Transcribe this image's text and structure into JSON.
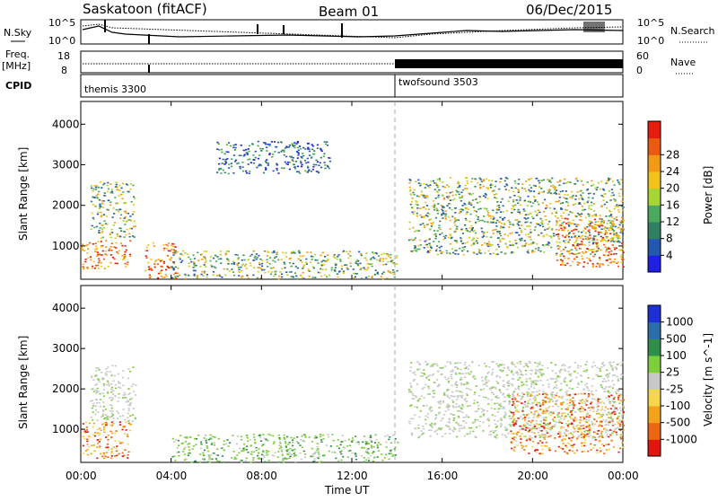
{
  "header": {
    "station": "Saskatoon (fitACF)",
    "beam": "Beam 01",
    "date": "06/Dec/2015"
  },
  "top_panels": {
    "nsky_label": "N.Sky",
    "nsky_ticks": [
      "10^5",
      "10^0"
    ],
    "nsearch_label": "N.Search",
    "nsearch_ticks": [
      "10^5",
      "10^0"
    ],
    "freq_label": "Freq.",
    "freq_unit": "[MHz]",
    "freq_ticks": [
      "18",
      "8"
    ],
    "nave_label": "Nave",
    "nave_ticks": [
      "60",
      "0"
    ],
    "cpid_label": "CPID",
    "cpid_modes": [
      {
        "name": "themis 3300",
        "start_hour": 0,
        "end_hour": 14
      },
      {
        "name": "twofsound 3503",
        "start_hour": 14,
        "end_hour": 24
      }
    ]
  },
  "chart_data": [
    {
      "type": "heatmap",
      "title": "",
      "xlabel": "",
      "ylabel": "Slant Range [km]",
      "xlim": [
        0,
        24
      ],
      "ylim": [
        180,
        4560
      ],
      "yticks": [
        "1000",
        "2000",
        "3000",
        "4000"
      ],
      "colorbar": {
        "label": "Power [dB]",
        "ticks": [
          "4",
          "8",
          "12",
          "16",
          "20",
          "24",
          "28"
        ],
        "colors": [
          "#1f1fe6",
          "#2457b0",
          "#2f7f63",
          "#4aa95d",
          "#a6d636",
          "#f4c21c",
          "#f29a16",
          "#ec5a11",
          "#e51d0d"
        ]
      },
      "regions": [
        {
          "t": [
            0.0,
            2.2
          ],
          "r": [
            450,
            1150
          ],
          "level": "high"
        },
        {
          "t": [
            0.4,
            2.4
          ],
          "r": [
            1200,
            2600
          ],
          "level": "mid"
        },
        {
          "t": [
            2.8,
            4.2
          ],
          "r": [
            200,
            1100
          ],
          "level": "high"
        },
        {
          "t": [
            4.0,
            14.0
          ],
          "r": [
            200,
            900
          ],
          "level": "mid"
        },
        {
          "t": [
            6.0,
            11.0
          ],
          "r": [
            2800,
            3600
          ],
          "level": "low"
        },
        {
          "t": [
            14.5,
            24.0
          ],
          "r": [
            800,
            2700
          ],
          "level": "mid"
        },
        {
          "t": [
            21.0,
            24.0
          ],
          "r": [
            500,
            1700
          ],
          "level": "high"
        }
      ]
    },
    {
      "type": "heatmap",
      "title": "",
      "xlabel": "Time UT",
      "ylabel": "Slant Range [km]",
      "xlim": [
        0,
        24
      ],
      "ylim": [
        180,
        4560
      ],
      "xticks": [
        "00:00",
        "04:00",
        "08:00",
        "12:00",
        "16:00",
        "20:00",
        "00:00"
      ],
      "yticks": [
        "1000",
        "2000",
        "3000",
        "4000"
      ],
      "colorbar": {
        "label": "Velocity [m s^-1]",
        "ticks": [
          "1000",
          "500",
          "100",
          "25",
          "-25",
          "-100",
          "-500",
          "-1000"
        ],
        "colors": [
          "#1f2fd6",
          "#2b6fa8",
          "#2f8f4a",
          "#7ccf3a",
          "#c8c8c8",
          "#f6d64a",
          "#f4a21a",
          "#ee6512",
          "#e3150f"
        ]
      },
      "regions": [
        {
          "t": [
            0.0,
            2.2
          ],
          "r": [
            300,
            1200
          ],
          "level": "neg"
        },
        {
          "t": [
            0.4,
            2.4
          ],
          "r": [
            1200,
            2600
          ],
          "level": "zero"
        },
        {
          "t": [
            4.0,
            14.0
          ],
          "r": [
            200,
            900
          ],
          "level": "pos"
        },
        {
          "t": [
            14.5,
            24.0
          ],
          "r": [
            800,
            2700
          ],
          "level": "zero"
        },
        {
          "t": [
            19.0,
            24.0
          ],
          "r": [
            400,
            1900
          ],
          "level": "neg"
        }
      ]
    }
  ]
}
